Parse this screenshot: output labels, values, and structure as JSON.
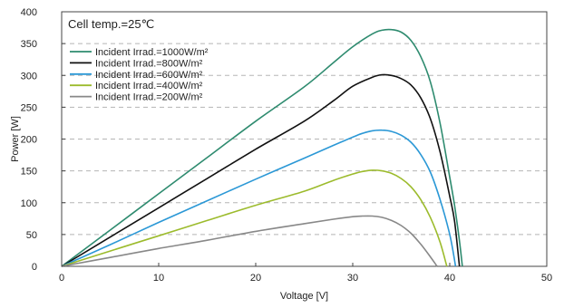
{
  "chart_data": {
    "type": "line",
    "title": "",
    "annotation": "Cell temp.=25℃",
    "xlabel": "Voltage [V]",
    "ylabel": "Power [W]",
    "xlim": [
      0,
      50
    ],
    "ylim": [
      0,
      400
    ],
    "xticks": [
      0,
      10,
      20,
      30,
      40,
      50
    ],
    "yticks": [
      0,
      50,
      100,
      150,
      200,
      250,
      300,
      350,
      400
    ],
    "grid": "horizontal dashed",
    "legend_position": "top-left",
    "series": [
      {
        "name": "Incident Irrad.=1000W/m²",
        "color": "#2e8b6f",
        "x": [
          0,
          5,
          10,
          15,
          20,
          25,
          28,
          30,
          32,
          33,
          34,
          35,
          36,
          37,
          38,
          39,
          40,
          40.5,
          41,
          41.3
        ],
        "y": [
          0,
          57,
          114,
          171,
          228,
          282,
          320,
          345,
          365,
          371,
          372,
          368,
          355,
          330,
          290,
          225,
          140,
          95,
          40,
          0
        ]
      },
      {
        "name": "Incident Irrad.=800W/m²",
        "color": "#111111",
        "x": [
          0,
          5,
          10,
          15,
          20,
          25,
          28,
          30,
          32,
          33,
          34,
          35,
          36,
          37,
          38,
          39,
          40,
          40.5,
          41
        ],
        "y": [
          0,
          46,
          92,
          138,
          184,
          228,
          260,
          283,
          297,
          301,
          300,
          295,
          285,
          265,
          232,
          180,
          110,
          70,
          0
        ]
      },
      {
        "name": "Incident Irrad.=600W/m²",
        "color": "#2b98d6",
        "x": [
          0,
          5,
          10,
          15,
          20,
          25,
          28,
          30,
          31,
          32,
          33,
          34,
          35,
          36,
          37,
          38,
          39,
          40,
          40.6
        ],
        "y": [
          0,
          34,
          69,
          103,
          137,
          170,
          190,
          203,
          209,
          213,
          214,
          212,
          206,
          195,
          176,
          148,
          105,
          50,
          0
        ]
      },
      {
        "name": "Incident Irrad.=400W/m²",
        "color": "#9cbb2c",
        "x": [
          0,
          5,
          10,
          15,
          20,
          25,
          28,
          30,
          31,
          32,
          33,
          34,
          35,
          36,
          37,
          38,
          39,
          39.7
        ],
        "y": [
          0,
          24,
          48,
          72,
          96,
          118,
          135,
          145,
          149,
          151,
          150,
          146,
          138,
          125,
          105,
          77,
          38,
          0
        ]
      },
      {
        "name": "Incident Irrad.=200W/m²",
        "color": "#888888",
        "x": [
          0,
          5,
          10,
          15,
          20,
          25,
          28,
          30,
          31,
          32,
          33,
          34,
          35,
          36,
          37,
          38,
          38.7
        ],
        "y": [
          0,
          14,
          28,
          41,
          55,
          67,
          74,
          78,
          79,
          79,
          77,
          72,
          64,
          52,
          35,
          15,
          0
        ]
      }
    ]
  }
}
